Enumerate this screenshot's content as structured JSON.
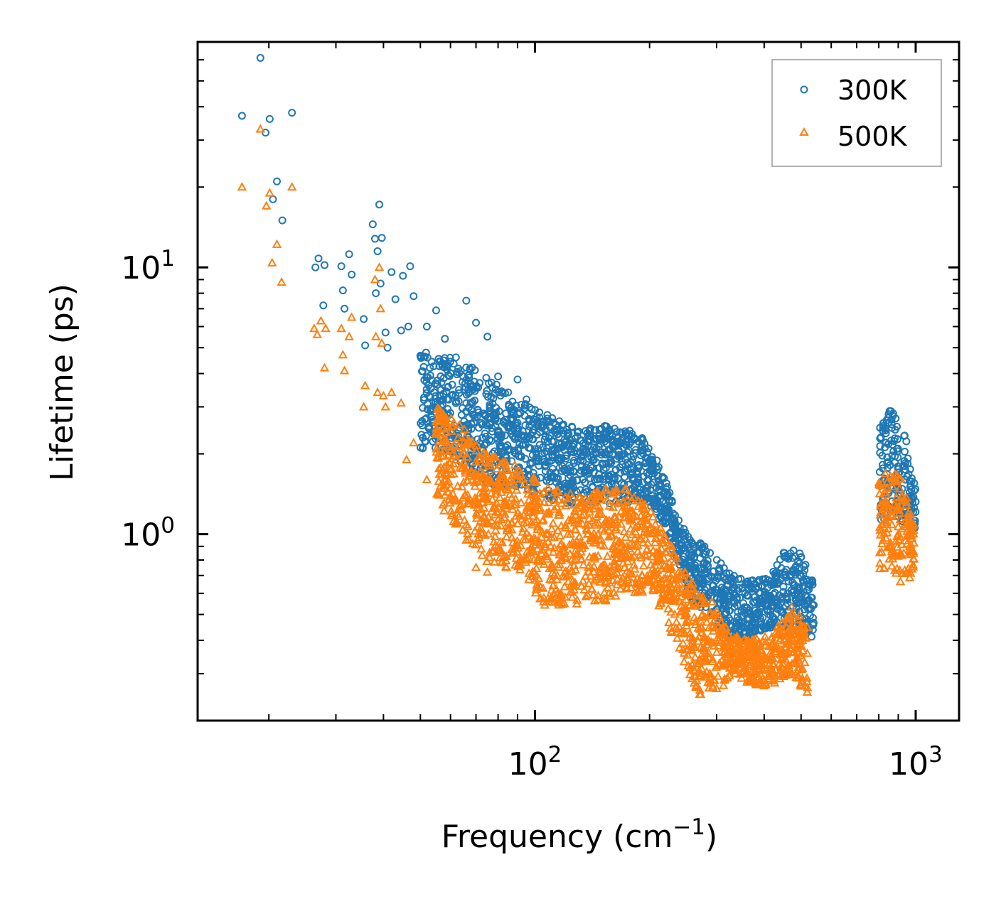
{
  "chart_data": {
    "type": "scatter",
    "title": "",
    "xlabel": "Frequency (cm",
    "xlabel_sup": "−1",
    "xlabel_suffix": ")",
    "ylabel": "Lifetime (ps)",
    "xscale": "log",
    "yscale": "log",
    "xlim": [
      13,
      1300
    ],
    "ylim": [
      0.2,
      70
    ],
    "x_major_ticks": [
      {
        "value": 100,
        "base": "10",
        "exp": "2"
      },
      {
        "value": 1000,
        "base": "10",
        "exp": "3"
      }
    ],
    "y_major_ticks": [
      {
        "value": 1,
        "base": "10",
        "exp": "0"
      },
      {
        "value": 10,
        "base": "10",
        "exp": "1"
      }
    ],
    "legend_position": "top-right",
    "series": [
      {
        "name": "300K",
        "marker": "circle",
        "color": "#1f77b4",
        "points": [
          [
            17.0,
            37.0
          ],
          [
            19.0,
            61.0
          ],
          [
            19.6,
            32.0
          ],
          [
            20.1,
            36.0
          ],
          [
            20.5,
            18.0
          ],
          [
            21.0,
            21.0
          ],
          [
            21.7,
            15.0
          ],
          [
            23.0,
            38.0
          ],
          [
            26.5,
            10.0
          ],
          [
            27.0,
            10.8
          ],
          [
            27.8,
            7.2
          ],
          [
            28.0,
            10.2
          ],
          [
            31.0,
            10.1
          ],
          [
            31.3,
            8.2
          ],
          [
            31.6,
            7.0
          ],
          [
            32.5,
            11.2
          ],
          [
            33.0,
            9.4
          ],
          [
            35.5,
            6.4
          ],
          [
            35.8,
            5.1
          ],
          [
            37.5,
            14.5
          ],
          [
            38.0,
            12.8
          ],
          [
            38.2,
            8.0
          ],
          [
            38.6,
            11.5
          ],
          [
            39.0,
            17.2
          ],
          [
            39.3,
            8.7
          ],
          [
            39.6,
            12.9
          ],
          [
            40.5,
            5.7
          ],
          [
            41.0,
            5.0
          ],
          [
            42.0,
            9.6
          ],
          [
            43.0,
            7.6
          ],
          [
            44.5,
            5.8
          ],
          [
            45.0,
            9.3
          ],
          [
            46.5,
            6.0
          ],
          [
            47.0,
            10.1
          ],
          [
            48.0,
            7.8
          ],
          [
            52.0,
            6.0
          ],
          [
            53.0,
            4.2
          ],
          [
            55.0,
            6.9
          ],
          [
            58.0,
            5.4
          ],
          [
            62.0,
            4.6
          ],
          [
            66.0,
            7.5
          ],
          [
            70.0,
            6.2
          ],
          [
            75.0,
            5.5
          ],
          [
            80.0,
            3.9
          ],
          [
            85.0,
            3.4
          ],
          [
            90.0,
            3.8
          ],
          [
            95.0,
            3.2
          ]
        ]
      },
      {
        "name": "500K",
        "marker": "triangle",
        "color": "#ff7f0e",
        "points": [
          [
            17.0,
            20.0
          ],
          [
            19.0,
            33.0
          ],
          [
            19.7,
            17.0
          ],
          [
            20.1,
            19.0
          ],
          [
            20.4,
            10.4
          ],
          [
            21.0,
            12.2
          ],
          [
            21.6,
            8.8
          ],
          [
            23.0,
            20.0
          ],
          [
            26.3,
            5.9
          ],
          [
            26.8,
            5.6
          ],
          [
            27.4,
            6.3
          ],
          [
            28.0,
            4.2
          ],
          [
            28.2,
            5.9
          ],
          [
            31.0,
            5.9
          ],
          [
            31.3,
            4.7
          ],
          [
            31.6,
            4.1
          ],
          [
            32.5,
            5.5
          ],
          [
            33.0,
            6.5
          ],
          [
            35.5,
            3.0
          ],
          [
            35.8,
            3.6
          ],
          [
            38.0,
            9.0
          ],
          [
            38.2,
            5.5
          ],
          [
            38.6,
            3.4
          ],
          [
            39.0,
            10.0
          ],
          [
            39.3,
            7.0
          ],
          [
            39.6,
            5.2
          ],
          [
            40.0,
            3.3
          ],
          [
            40.5,
            3.0
          ],
          [
            42.0,
            3.4
          ],
          [
            44.5,
            3.1
          ],
          [
            46.0,
            1.9
          ],
          [
            48.0,
            2.2
          ],
          [
            52.0,
            1.6
          ],
          [
            55.0,
            2.4
          ],
          [
            58.0,
            1.4
          ],
          [
            62.0,
            1.1
          ],
          [
            66.0,
            0.95
          ],
          [
            70.0,
            0.75
          ],
          [
            75.0,
            0.72
          ]
        ]
      }
    ],
    "dense_bands": [
      {
        "series": "300K",
        "segments": [
          [
            50,
            2.1,
            5.0
          ],
          [
            60,
            2.0,
            4.6
          ],
          [
            70,
            1.6,
            4.2
          ],
          [
            80,
            1.5,
            3.6
          ],
          [
            90,
            1.5,
            3.2
          ],
          [
            100,
            1.4,
            3.0
          ],
          [
            120,
            1.3,
            2.6
          ],
          [
            140,
            1.3,
            2.5
          ],
          [
            160,
            1.3,
            2.6
          ],
          [
            180,
            1.3,
            2.5
          ],
          [
            200,
            1.3,
            2.2
          ],
          [
            220,
            1.0,
            1.6
          ],
          [
            240,
            0.7,
            1.1
          ],
          [
            260,
            0.55,
            0.95
          ],
          [
            290,
            0.5,
            0.9
          ],
          [
            320,
            0.42,
            0.72
          ],
          [
            350,
            0.4,
            0.68
          ],
          [
            390,
            0.42,
            0.68
          ],
          [
            420,
            0.45,
            0.72
          ],
          [
            460,
            0.45,
            0.9
          ],
          [
            500,
            0.45,
            0.85
          ],
          [
            540,
            0.4,
            0.65
          ],
          [
            800,
            1.05,
            2.5
          ],
          [
            860,
            1.2,
            3.0
          ],
          [
            920,
            1.1,
            2.7
          ],
          [
            1000,
            1.05,
            1.5
          ]
        ]
      },
      {
        "series": "500K",
        "segments": [
          [
            55,
            1.3,
            3.0
          ],
          [
            65,
            1.0,
            2.5
          ],
          [
            75,
            0.75,
            2.0
          ],
          [
            90,
            0.75,
            1.8
          ],
          [
            110,
            0.5,
            1.5
          ],
          [
            130,
            0.55,
            1.4
          ],
          [
            150,
            0.55,
            1.5
          ],
          [
            170,
            0.6,
            1.5
          ],
          [
            200,
            0.6,
            1.3
          ],
          [
            220,
            0.5,
            1.0
          ],
          [
            240,
            0.35,
            0.8
          ],
          [
            270,
            0.25,
            0.6
          ],
          [
            300,
            0.25,
            0.55
          ],
          [
            330,
            0.3,
            0.42
          ],
          [
            370,
            0.27,
            0.4
          ],
          [
            420,
            0.27,
            0.42
          ],
          [
            470,
            0.3,
            0.55
          ],
          [
            520,
            0.25,
            0.45
          ],
          [
            800,
            0.7,
            1.6
          ],
          [
            860,
            0.75,
            1.8
          ],
          [
            920,
            0.65,
            1.6
          ],
          [
            990,
            0.7,
            1.1
          ]
        ]
      }
    ]
  }
}
